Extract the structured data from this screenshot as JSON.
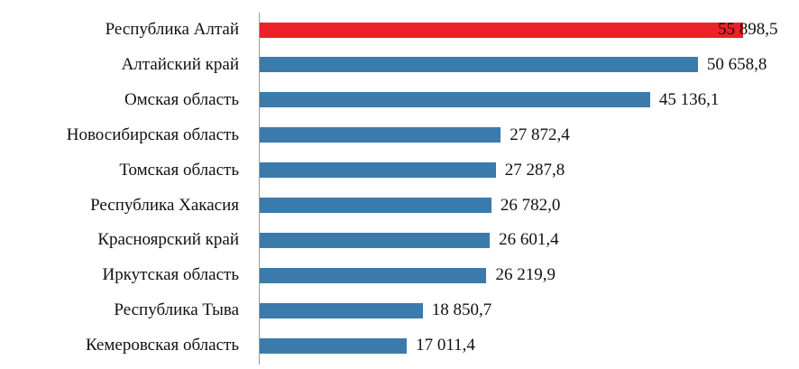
{
  "chart_data": {
    "type": "bar",
    "orientation": "horizontal",
    "title": "",
    "xlabel": "",
    "ylabel": "",
    "categories": [
      "Республика Алтай",
      "Алтайский край",
      "Омская область",
      "Новосибирская область",
      "Томская область",
      "Республика Хакасия",
      "Красноярский край",
      "Иркутская область",
      "Республика Тыва",
      "Кемеровская область"
    ],
    "values": [
      55898.5,
      50658.8,
      45136.1,
      27872.4,
      27287.8,
      26782.0,
      26601.4,
      26219.9,
      18850.7,
      17011.4
    ],
    "value_labels": [
      "55 898,5",
      "50 658,8",
      "45 136,1",
      "27 872,4",
      "27 287,8",
      "26 782,0",
      "26 601,4",
      "26 219,9",
      "18 850,7",
      "17 011,4"
    ],
    "highlight_index": 0,
    "colors": {
      "default": "#3b7bab",
      "highlight": "#ee2027"
    },
    "grid": false,
    "legend": "none"
  }
}
